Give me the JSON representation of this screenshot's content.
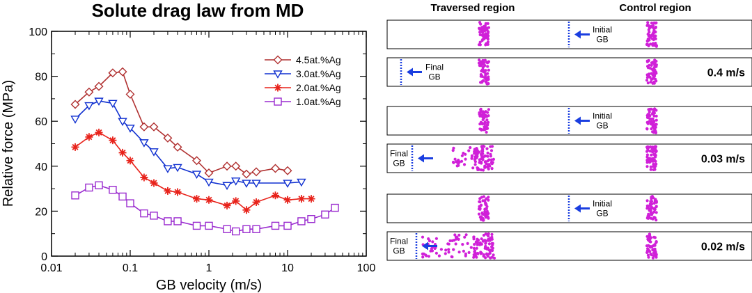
{
  "chart_data": {
    "type": "line",
    "title": "Solute drag law from MD",
    "xlabel": "GB velocity (m/s)",
    "ylabel": "Relative force (MPa)",
    "xscale": "log",
    "xlim": [
      0.01,
      100
    ],
    "ylim": [
      0,
      100
    ],
    "x_ticks": [
      0.01,
      0.1,
      1,
      10,
      100
    ],
    "x_tick_labels": [
      "0.01",
      "0.1",
      "1",
      "10",
      "100"
    ],
    "y_ticks": [
      0,
      20,
      40,
      60,
      80,
      100
    ],
    "y_tick_labels": [
      "0",
      "20",
      "40",
      "60",
      "80",
      "100"
    ],
    "grid": false,
    "legend_position": "top-right",
    "series": [
      {
        "name": "4.5at.%Ag",
        "color": "#b03030",
        "marker": "diamond",
        "points": [
          [
            0.02,
            67.5
          ],
          [
            0.03,
            73
          ],
          [
            0.04,
            75.5
          ],
          [
            0.06,
            81.5
          ],
          [
            0.08,
            82
          ],
          [
            0.1,
            72
          ],
          [
            0.15,
            57.5
          ],
          [
            0.2,
            57.5
          ],
          [
            0.3,
            52.5
          ],
          [
            0.4,
            48.5
          ],
          [
            0.7,
            42.5
          ],
          [
            1.0,
            37
          ],
          [
            1.7,
            40
          ],
          [
            2.2,
            40
          ],
          [
            3.0,
            36.5
          ],
          [
            4.0,
            37.5
          ],
          [
            7.0,
            39
          ],
          [
            10.0,
            38
          ]
        ]
      },
      {
        "name": "3.0at.%Ag",
        "color": "#1030d0",
        "marker": "triangle-down",
        "points": [
          [
            0.02,
            61
          ],
          [
            0.03,
            67
          ],
          [
            0.04,
            69
          ],
          [
            0.06,
            68
          ],
          [
            0.08,
            60
          ],
          [
            0.1,
            57
          ],
          [
            0.15,
            50.5
          ],
          [
            0.2,
            46.5
          ],
          [
            0.3,
            39
          ],
          [
            0.4,
            39.5
          ],
          [
            0.7,
            36.5
          ],
          [
            1.0,
            33
          ],
          [
            1.7,
            31.5
          ],
          [
            2.2,
            33.5
          ],
          [
            3.0,
            32.5
          ],
          [
            4.0,
            32.5
          ],
          [
            10.0,
            32.5
          ],
          [
            15.0,
            33
          ]
        ]
      },
      {
        "name": "2.0at.%Ag",
        "color": "#e8221a",
        "marker": "star",
        "points": [
          [
            0.02,
            48.5
          ],
          [
            0.03,
            53
          ],
          [
            0.04,
            55
          ],
          [
            0.06,
            51.5
          ],
          [
            0.08,
            46
          ],
          [
            0.1,
            42.5
          ],
          [
            0.15,
            35
          ],
          [
            0.2,
            32.5
          ],
          [
            0.3,
            29
          ],
          [
            0.4,
            28.5
          ],
          [
            0.7,
            25.5
          ],
          [
            1.0,
            25
          ],
          [
            1.7,
            22.5
          ],
          [
            2.2,
            24.5
          ],
          [
            3.0,
            20.5
          ],
          [
            4.0,
            24
          ],
          [
            7.0,
            27
          ],
          [
            10.0,
            25
          ],
          [
            15.0,
            25.5
          ],
          [
            20.0,
            25.5
          ]
        ]
      },
      {
        "name": "1.0at.%Ag",
        "color": "#9a2bcf",
        "marker": "square",
        "points": [
          [
            0.02,
            27
          ],
          [
            0.03,
            30.5
          ],
          [
            0.04,
            31.5
          ],
          [
            0.06,
            29.5
          ],
          [
            0.08,
            26.5
          ],
          [
            0.1,
            23.5
          ],
          [
            0.15,
            19
          ],
          [
            0.2,
            18
          ],
          [
            0.3,
            15.5
          ],
          [
            0.4,
            15.5
          ],
          [
            0.7,
            13.5
          ],
          [
            1.0,
            13.5
          ],
          [
            1.7,
            12
          ],
          [
            2.2,
            11
          ],
          [
            3.0,
            12
          ],
          [
            4.0,
            12
          ],
          [
            7.0,
            13.5
          ],
          [
            10.0,
            13.5
          ],
          [
            15.0,
            15.5
          ],
          [
            20.0,
            16.5
          ],
          [
            30.0,
            18.5
          ],
          [
            40.0,
            21.5
          ]
        ]
      }
    ]
  },
  "simulation": {
    "header_traversed": "Traversed region",
    "header_control": "Control region",
    "panels": [
      {
        "arrow_label": "Initial\nGB",
        "speed": ""
      },
      {
        "arrow_label": "Final\nGB",
        "speed": "0.4 m/s"
      },
      {
        "arrow_label": "Initial\nGB",
        "speed": ""
      },
      {
        "arrow_label": "Final\nGB",
        "speed": "0.03 m/s"
      },
      {
        "arrow_label": "Initial\nGB",
        "speed": ""
      },
      {
        "arrow_label": "Final\nGB",
        "speed": "0.02 m/s"
      }
    ],
    "colors": {
      "atoms": "#d020d8",
      "arrow": "#1a3ee0",
      "gb_line": "#1a3ee0"
    }
  }
}
